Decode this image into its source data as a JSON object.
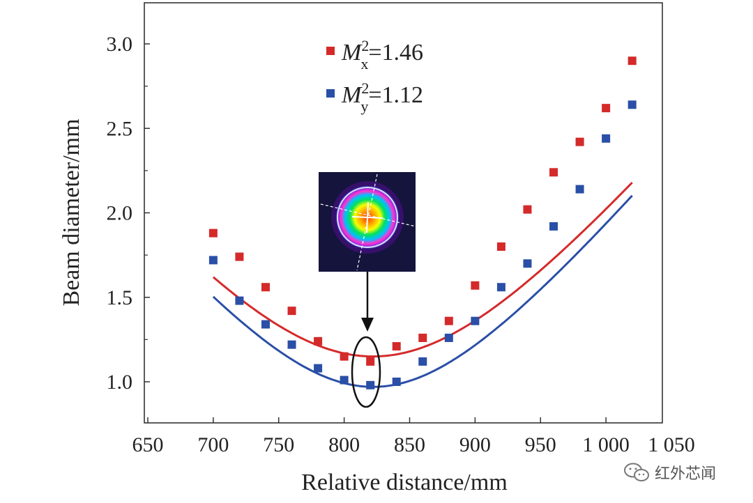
{
  "chart_data": {
    "type": "scatter",
    "xlabel": "Relative distance/mm",
    "ylabel": "Beam diameter/mm",
    "xlim": [
      650,
      1050
    ],
    "ylim": [
      0.8,
      3.25
    ],
    "xticks": [
      650,
      700,
      750,
      800,
      850,
      900,
      950,
      1000,
      1050
    ],
    "xtick_labels": [
      "650",
      "700",
      "750",
      "800",
      "850",
      "900",
      "950",
      "1 000",
      "1 050"
    ],
    "yticks": [
      1.0,
      1.5,
      2.0,
      2.5,
      3.0
    ],
    "ytick_labels": [
      "1.0",
      "1.5",
      "2.0",
      "2.5",
      "3.0"
    ],
    "grid": false,
    "legend_position": "top-left",
    "x": [
      700,
      720,
      740,
      760,
      780,
      800,
      820,
      840,
      860,
      880,
      900,
      920,
      940,
      960,
      980,
      1000,
      1020
    ],
    "series": [
      {
        "legend_symbol": "M",
        "legend_subscript": "x",
        "legend_superscript": "2",
        "legend_value": "=1.46",
        "color": "#d42a2a",
        "values": [
          1.88,
          1.74,
          1.56,
          1.42,
          1.24,
          1.15,
          1.12,
          1.21,
          1.26,
          1.36,
          1.57,
          1.8,
          2.02,
          2.24,
          2.42,
          2.62,
          2.9
        ],
        "fit": {
          "w0": 1.15,
          "z0": 822,
          "zr": 123
        }
      },
      {
        "legend_symbol": "M",
        "legend_subscript": "y",
        "legend_superscript": "2",
        "legend_value": "=1.12",
        "color": "#2a4fa6",
        "values": [
          1.72,
          1.48,
          1.34,
          1.22,
          1.08,
          1.01,
          0.98,
          1.0,
          1.12,
          1.26,
          1.36,
          1.56,
          1.7,
          1.92,
          2.14,
          2.44,
          2.64
        ],
        "fit": {
          "w0": 0.97,
          "z0": 822,
          "zr": 103
        }
      }
    ],
    "annotation": {
      "description": "beam profile inset with arrow pointing to the beam waist",
      "target_x": 822,
      "target_y": 1.05,
      "colors": [
        "#1a1a6e",
        "#8a2be2",
        "#ff33cc",
        "#00c0ff",
        "#00e060",
        "#ffff00",
        "#ff3300"
      ]
    }
  },
  "watermark": {
    "label": "红外芯闻",
    "icon": "wechat-icon"
  }
}
